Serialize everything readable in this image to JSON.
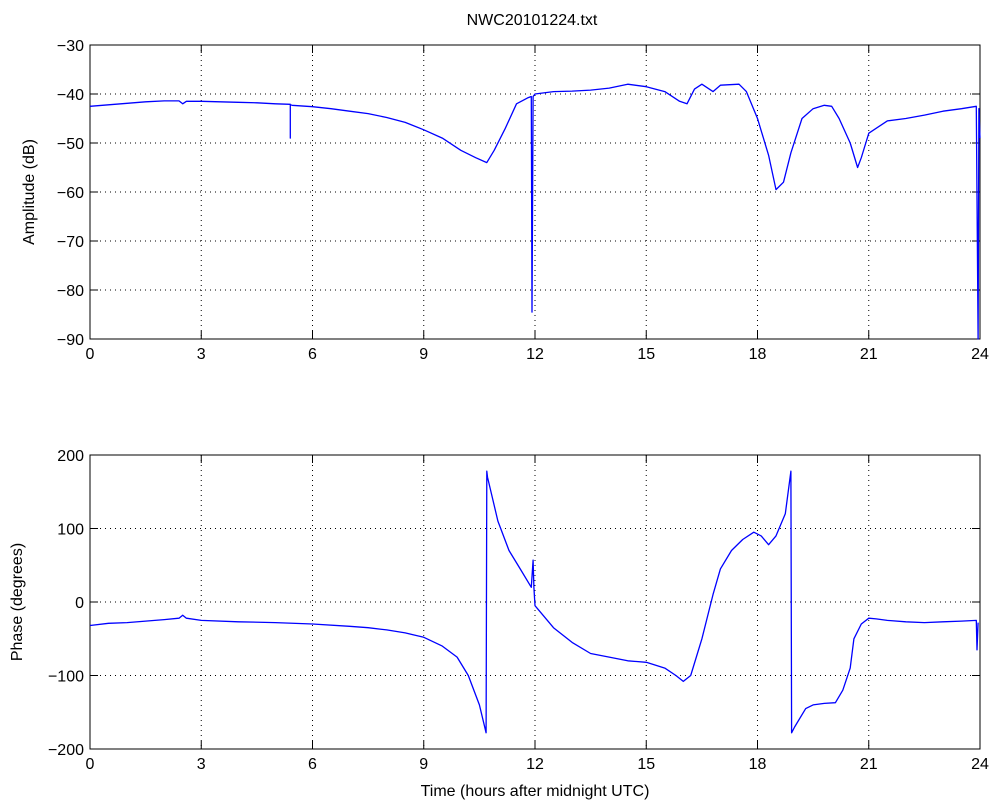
{
  "figure_title": "NWC20101224.txt",
  "line_color": "#0000ff",
  "chart_data": [
    {
      "type": "line",
      "title": "NWC20101224.txt",
      "xlabel": "",
      "ylabel": "Amplitude (dB)",
      "xlim": [
        0,
        24
      ],
      "ylim": [
        -90,
        -30
      ],
      "xticks": [
        "0",
        "3",
        "6",
        "9",
        "12",
        "15",
        "18",
        "21",
        "24"
      ],
      "yticks": [
        "−90",
        "−80",
        "−70",
        "−60",
        "−50",
        "−40",
        "−30"
      ],
      "grid": true,
      "series": [
        {
          "x": [
            0,
            0.5,
            1,
            1.5,
            2,
            2.4,
            2.5,
            2.6,
            3,
            3.5,
            4,
            4.5,
            5,
            5.4,
            5.4,
            5.4,
            5.45,
            6,
            6.5,
            7,
            7.5,
            8,
            8.5,
            9,
            9.5,
            10,
            10.4,
            10.7,
            10.9,
            11.2,
            11.5,
            11.8,
            11.9,
            11.92,
            11.95,
            12,
            12.5,
            13,
            13.5,
            14,
            14.5,
            15,
            15.5,
            15.9,
            16.1,
            16.3,
            16.5,
            16.8,
            17,
            17.5,
            17.7,
            18,
            18.3,
            18.5,
            18.7,
            18.9,
            19.2,
            19.5,
            19.8,
            20,
            20.2,
            20.5,
            20.7,
            20.8,
            21,
            21.5,
            22,
            22.5,
            23,
            23.5,
            23.9,
            23.95,
            23.97,
            24
          ],
          "y": [
            -42.5,
            -42.2,
            -41.9,
            -41.6,
            -41.4,
            -41.4,
            -42,
            -41.5,
            -41.5,
            -41.6,
            -41.7,
            -41.8,
            -42,
            -42.1,
            -49,
            -42.2,
            -42.3,
            -42.6,
            -43,
            -43.5,
            -44,
            -44.8,
            -45.8,
            -47.3,
            -49,
            -51.5,
            -53,
            -54,
            -51.5,
            -47,
            -42,
            -40.8,
            -40.5,
            -84.5,
            -40.5,
            -40,
            -39.5,
            -39.4,
            -39.2,
            -38.8,
            -38,
            -38.5,
            -39.5,
            -41.5,
            -42,
            -39,
            -38,
            -39.5,
            -38.2,
            -38,
            -39.5,
            -45,
            -52.5,
            -59.5,
            -58,
            -52,
            -45,
            -43,
            -42.3,
            -42.5,
            -45,
            -50,
            -55,
            -53,
            -48,
            -45.5,
            -45,
            -44.3,
            -43.5,
            -43,
            -42.5,
            -90,
            -43,
            -49
          ]
        }
      ]
    },
    {
      "type": "line",
      "title": "",
      "xlabel": "Time (hours after midnight UTC)",
      "ylabel": "Phase (degrees)",
      "xlim": [
        0,
        24
      ],
      "ylim": [
        -200,
        200
      ],
      "xticks": [
        "0",
        "3",
        "6",
        "9",
        "12",
        "15",
        "18",
        "21",
        "24"
      ],
      "yticks": [
        "−200",
        "−100",
        "0",
        "100",
        "200"
      ],
      "grid": true,
      "series": [
        {
          "x": [
            0,
            0.5,
            1,
            1.5,
            2,
            2.4,
            2.5,
            2.6,
            3,
            4,
            5,
            6,
            7,
            7.5,
            8,
            8.5,
            9,
            9.5,
            9.9,
            10.2,
            10.5,
            10.68,
            10.7,
            10.72,
            11,
            11.3,
            11.6,
            11.9,
            11.95,
            11.97,
            12,
            12.5,
            13,
            13.5,
            14,
            14.5,
            15,
            15.5,
            15.8,
            16,
            16.2,
            16.5,
            16.8,
            17,
            17.3,
            17.6,
            17.9,
            18.1,
            18.3,
            18.5,
            18.75,
            18.9,
            18.92,
            19,
            19.3,
            19.5,
            19.8,
            20.1,
            20.3,
            20.5,
            20.6,
            20.8,
            21,
            21.2,
            21.5,
            22,
            22.5,
            23,
            23.5,
            23.9,
            23.92,
            23.95
          ],
          "y": [
            -32,
            -29,
            -28,
            -26,
            -24,
            -22,
            -18,
            -22,
            -25,
            -27,
            -28,
            -30,
            -33,
            -35,
            -38,
            -42,
            -48,
            -60,
            -75,
            -100,
            -140,
            -178,
            178,
            170,
            110,
            70,
            45,
            20,
            57,
            20,
            -5,
            -35,
            -55,
            -70,
            -75,
            -80,
            -82,
            -90,
            -100,
            -108,
            -100,
            -50,
            10,
            45,
            70,
            85,
            95,
            90,
            78,
            90,
            120,
            178,
            -178,
            -170,
            -145,
            -140,
            -138,
            -137,
            -120,
            -90,
            -50,
            -30,
            -22,
            -23,
            -25,
            -27,
            -28,
            -27,
            -26,
            -25,
            -65,
            -28
          ]
        }
      ]
    }
  ]
}
